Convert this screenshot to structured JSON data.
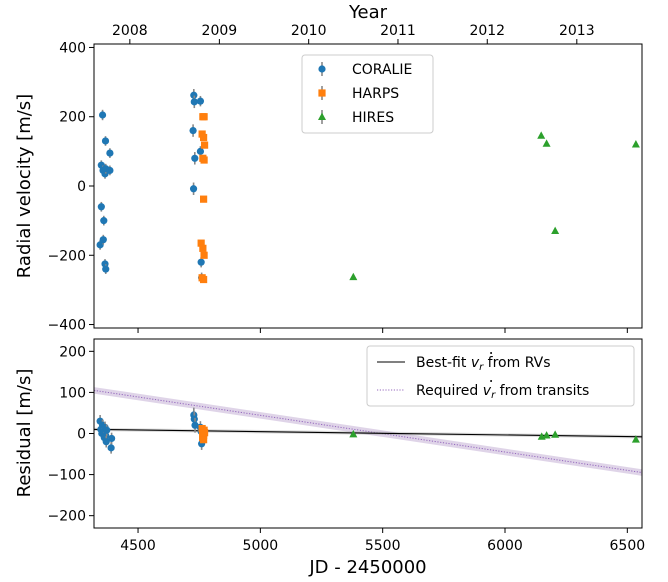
{
  "chart_data": [
    {
      "type": "scatter",
      "panel": "top",
      "top_axis": {
        "label": "Year",
        "ticks": [
          {
            "label": "2008",
            "jd": 4466.5
          },
          {
            "label": "2009",
            "jd": 4832.5
          },
          {
            "label": "2010",
            "jd": 5197.5
          },
          {
            "label": "2011",
            "jd": 5562.5
          },
          {
            "label": "2012",
            "jd": 5927.5
          },
          {
            "label": "2013",
            "jd": 6293.5
          }
        ]
      },
      "xlim": [
        4320,
        6560
      ],
      "ylim": [
        -410,
        410
      ],
      "ylabel": "Radial velocity [m/s]",
      "yticks": [
        {
          "v": 400,
          "label": "400"
        },
        {
          "v": 200,
          "label": "200"
        },
        {
          "v": 0,
          "label": "0"
        },
        {
          "v": -200,
          "label": "−200"
        },
        {
          "v": -400,
          "label": "−400"
        }
      ],
      "legend_position": "top-center",
      "series": [
        {
          "name": "CORALIE",
          "marker": "circle",
          "color": "#1f77b4",
          "points": [
            {
              "x": 4355,
              "y": 205,
              "err": 15
            },
            {
              "x": 4350,
              "y": 60,
              "err": 14
            },
            {
              "x": 4357,
              "y": 45,
              "err": 14
            },
            {
              "x": 4365,
              "y": 35,
              "err": 14
            },
            {
              "x": 4368,
              "y": 50,
              "err": 14
            },
            {
              "x": 4385,
              "y": 95,
              "err": 14
            },
            {
              "x": 4367,
              "y": 130,
              "err": 14
            },
            {
              "x": 4385,
              "y": 45,
              "err": 14
            },
            {
              "x": 4350,
              "y": -60,
              "err": 14
            },
            {
              "x": 4360,
              "y": -100,
              "err": 14
            },
            {
              "x": 4345,
              "y": -170,
              "err": 14
            },
            {
              "x": 4358,
              "y": -155,
              "err": 14
            },
            {
              "x": 4365,
              "y": -225,
              "err": 14
            },
            {
              "x": 4368,
              "y": -240,
              "err": 14
            },
            {
              "x": 4728,
              "y": 262,
              "err": 18
            },
            {
              "x": 4730,
              "y": 243,
              "err": 18
            },
            {
              "x": 4725,
              "y": 160,
              "err": 18
            },
            {
              "x": 4732,
              "y": 80,
              "err": 18
            },
            {
              "x": 4727,
              "y": -8,
              "err": 18
            },
            {
              "x": 4755,
              "y": 245,
              "err": 15
            },
            {
              "x": 4755,
              "y": 100,
              "err": 15
            },
            {
              "x": 4758,
              "y": -220,
              "err": 15
            },
            {
              "x": 4760,
              "y": -265,
              "err": 15
            }
          ]
        },
        {
          "name": "HARPS",
          "marker": "square",
          "color": "#ff7f0e",
          "points": [
            {
              "x": 4765,
              "y": 200,
              "err": 3
            },
            {
              "x": 4770,
              "y": 200,
              "err": 3
            },
            {
              "x": 4762,
              "y": 150,
              "err": 3
            },
            {
              "x": 4768,
              "y": 140,
              "err": 3
            },
            {
              "x": 4772,
              "y": 118,
              "err": 3
            },
            {
              "x": 4765,
              "y": 80,
              "err": 3
            },
            {
              "x": 4770,
              "y": 75,
              "err": 3
            },
            {
              "x": 4768,
              "y": -38,
              "err": 3
            },
            {
              "x": 4758,
              "y": -165,
              "err": 3
            },
            {
              "x": 4765,
              "y": -180,
              "err": 3
            },
            {
              "x": 4770,
              "y": -200,
              "err": 3
            },
            {
              "x": 4762,
              "y": -265,
              "err": 3
            },
            {
              "x": 4768,
              "y": -270,
              "err": 3
            }
          ]
        },
        {
          "name": "HIRES",
          "marker": "triangle",
          "color": "#2ca02c",
          "points": [
            {
              "x": 5380,
              "y": -263,
              "err": 3
            },
            {
              "x": 6148,
              "y": 145,
              "err": 3
            },
            {
              "x": 6170,
              "y": 122,
              "err": 3
            },
            {
              "x": 6205,
              "y": -130,
              "err": 3
            },
            {
              "x": 6535,
              "y": 120,
              "err": 3
            }
          ]
        }
      ]
    },
    {
      "type": "scatter",
      "panel": "bottom",
      "xlim": [
        4320,
        6560
      ],
      "ylim": [
        -230,
        230
      ],
      "xlabel": "JD - 2450000",
      "ylabel": "Residual [m/s]",
      "xticks": [
        {
          "v": 4500,
          "label": "4500"
        },
        {
          "v": 5000,
          "label": "5000"
        },
        {
          "v": 5500,
          "label": "5500"
        },
        {
          "v": 6000,
          "label": "6000"
        },
        {
          "v": 6500,
          "label": "6500"
        }
      ],
      "yticks": [
        {
          "v": 200,
          "label": "200"
        },
        {
          "v": 100,
          "label": "100"
        },
        {
          "v": 0,
          "label": "0"
        },
        {
          "v": -100,
          "label": "−100"
        },
        {
          "v": -200,
          "label": "−200"
        }
      ],
      "legend_position": "top-right",
      "lines": [
        {
          "name": "Best-fit v̇r from RVs",
          "label_parts": [
            "Best-fit ",
            "v",
            "r",
            " from RVs"
          ],
          "style": "solid",
          "color": "#000000",
          "x": [
            4320,
            6560
          ],
          "y": [
            10,
            -8
          ],
          "band": 4
        },
        {
          "name": "Required v̇r from transits",
          "label_parts": [
            "Required ",
            "v",
            "r",
            " from transits"
          ],
          "style": "dotted",
          "color": "#9467bd",
          "x": [
            4320,
            6560
          ],
          "y": [
            105,
            -95
          ],
          "band": 8
        }
      ],
      "series": [
        {
          "name": "CORALIE",
          "marker": "circle",
          "color": "#1f77b4",
          "points": [
            {
              "x": 4345,
              "y": 30,
              "err": 15
            },
            {
              "x": 4348,
              "y": 10,
              "err": 14
            },
            {
              "x": 4352,
              "y": 0,
              "err": 14
            },
            {
              "x": 4355,
              "y": 20,
              "err": 14
            },
            {
              "x": 4360,
              "y": 5,
              "err": 14
            },
            {
              "x": 4362,
              "y": -10,
              "err": 14
            },
            {
              "x": 4365,
              "y": 15,
              "err": 14
            },
            {
              "x": 4368,
              "y": -5,
              "err": 14
            },
            {
              "x": 4370,
              "y": -20,
              "err": 14
            },
            {
              "x": 4372,
              "y": 8,
              "err": 14
            },
            {
              "x": 4390,
              "y": -35,
              "err": 14
            },
            {
              "x": 4392,
              "y": -12,
              "err": 14
            },
            {
              "x": 4728,
              "y": 45,
              "err": 18
            },
            {
              "x": 4730,
              "y": 35,
              "err": 18
            },
            {
              "x": 4733,
              "y": 20,
              "err": 18
            },
            {
              "x": 4755,
              "y": 15,
              "err": 15
            },
            {
              "x": 4758,
              "y": 5,
              "err": 15
            },
            {
              "x": 4760,
              "y": -25,
              "err": 15
            }
          ]
        },
        {
          "name": "HARPS",
          "marker": "square",
          "color": "#ff7f0e",
          "points": [
            {
              "x": 4762,
              "y": 12,
              "err": 3
            },
            {
              "x": 4764,
              "y": 5,
              "err": 3
            },
            {
              "x": 4766,
              "y": 0,
              "err": 3
            },
            {
              "x": 4768,
              "y": -5,
              "err": 3
            },
            {
              "x": 4770,
              "y": 8,
              "err": 3
            },
            {
              "x": 4764,
              "y": -10,
              "err": 3
            },
            {
              "x": 4768,
              "y": -15,
              "err": 3
            },
            {
              "x": 4772,
              "y": 2,
              "err": 3
            }
          ]
        },
        {
          "name": "HIRES",
          "marker": "triangle",
          "color": "#2ca02c",
          "points": [
            {
              "x": 5380,
              "y": -2,
              "err": 3
            },
            {
              "x": 6150,
              "y": -8,
              "err": 3
            },
            {
              "x": 6170,
              "y": -5,
              "err": 3
            },
            {
              "x": 6205,
              "y": -3,
              "err": 3
            },
            {
              "x": 6535,
              "y": -15,
              "err": 3
            }
          ]
        }
      ]
    }
  ]
}
